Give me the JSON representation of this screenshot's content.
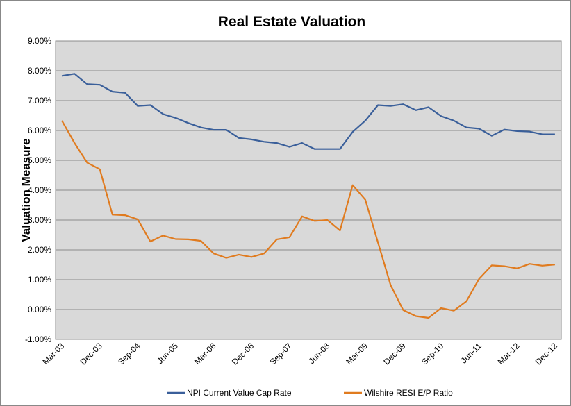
{
  "chart_data": {
    "type": "line",
    "title": "Real Estate Valuation",
    "y_label": "Valuation Measure",
    "categories": [
      "Mar-03",
      null,
      null,
      "Dec-03",
      null,
      null,
      "Sep-04",
      null,
      null,
      "Jun-05",
      null,
      null,
      "Mar-06",
      null,
      null,
      "Dec-06",
      null,
      null,
      "Sep-07",
      null,
      null,
      "Jun-08",
      null,
      null,
      "Mar-09",
      null,
      null,
      "Dec-09",
      null,
      null,
      "Sep-10",
      null,
      null,
      "Jun-11",
      null,
      null,
      "Mar-12",
      null,
      null,
      "Dec-12"
    ],
    "series": [
      {
        "name": "NPI Current Value Cap Rate",
        "color": "#3a5f9a",
        "values": [
          7.83,
          7.9,
          7.55,
          7.53,
          7.3,
          7.26,
          6.82,
          6.85,
          6.55,
          6.42,
          6.25,
          6.1,
          6.02,
          6.02,
          5.75,
          5.7,
          5.62,
          5.58,
          5.45,
          5.58,
          5.38,
          5.38,
          5.38,
          5.95,
          6.33,
          6.85,
          6.82,
          6.88,
          6.68,
          6.78,
          6.48,
          6.33,
          6.1,
          6.06,
          5.82,
          6.03,
          5.98,
          5.96,
          5.87,
          5.87
        ]
      },
      {
        "name": "Wilshire RESI E/P Ratio",
        "color": "#e07b1f",
        "values": [
          6.33,
          5.58,
          4.92,
          4.7,
          3.18,
          3.16,
          3.02,
          2.28,
          2.48,
          2.36,
          2.35,
          2.3,
          1.88,
          1.73,
          1.84,
          1.76,
          1.88,
          2.35,
          2.42,
          3.12,
          2.97,
          3.0,
          2.65,
          4.17,
          3.68,
          2.25,
          0.82,
          -0.02,
          -0.22,
          -0.28,
          0.05,
          -0.04,
          0.28,
          1.03,
          1.48,
          1.45,
          1.38,
          1.53,
          1.47,
          1.51
        ]
      }
    ],
    "ylim": [
      -1,
      9
    ],
    "yticks": [
      {
        "value": -1,
        "label": "-1.00%"
      },
      {
        "value": 0,
        "label": "0.00%"
      },
      {
        "value": 1,
        "label": "1.00%"
      },
      {
        "value": 2,
        "label": "2.00%"
      },
      {
        "value": 3,
        "label": "3.00%"
      },
      {
        "value": 4,
        "label": "4.00%"
      },
      {
        "value": 5,
        "label": "5.00%"
      },
      {
        "value": 6,
        "label": "6.00%"
      },
      {
        "value": 7,
        "label": "7.00%"
      },
      {
        "value": 8,
        "label": "8.00%"
      },
      {
        "value": 9,
        "label": "9.00%"
      }
    ],
    "grid": true,
    "legend": "bottom"
  }
}
